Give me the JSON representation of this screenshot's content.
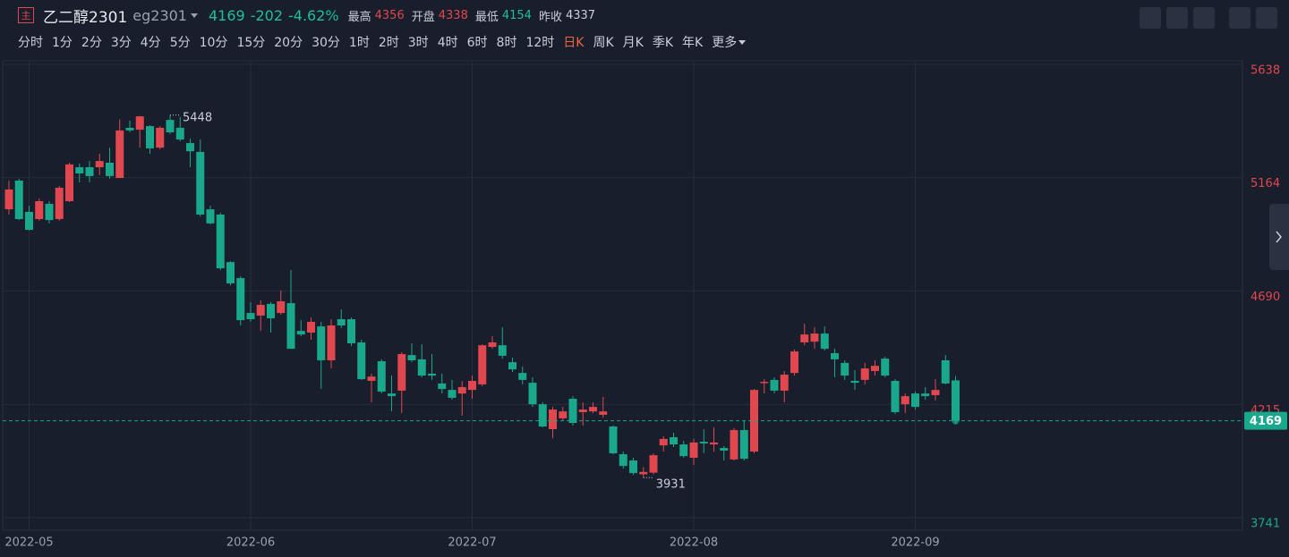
{
  "header": {
    "badge": "主",
    "name": "乙二醇2301",
    "code": "eg2301",
    "price": "4169",
    "change": "-202",
    "change_pct": "-4.62%",
    "stats": [
      {
        "label": "最高",
        "value": "4356"
      },
      {
        "label": "开盘",
        "value": "4338"
      },
      {
        "label": "最低",
        "value": "4154"
      },
      {
        "label": "昨收",
        "value": "4337"
      }
    ]
  },
  "timeframes": [
    "分时",
    "1分",
    "2分",
    "3分",
    "4分",
    "5分",
    "10分",
    "15分",
    "20分",
    "30分",
    "1时",
    "2时",
    "3时",
    "4时",
    "6时",
    "8时",
    "12时",
    "日K",
    "周K",
    "月K",
    "季K",
    "年K",
    "更多"
  ],
  "active_timeframe": "日K",
  "chart_data": {
    "type": "candlestick",
    "up_color": "#e0474f",
    "down_color": "#1aa88c",
    "categories": [
      null,
      null,
      "2022-05",
      null,
      null,
      null,
      null,
      null,
      null,
      null,
      null,
      null,
      null,
      null,
      null,
      null,
      null,
      null,
      null,
      null,
      null,
      null,
      null,
      null,
      "2022-06",
      null,
      null,
      null,
      null,
      null,
      null,
      null,
      null,
      null,
      null,
      null,
      null,
      null,
      null,
      null,
      null,
      null,
      null,
      null,
      null,
      null,
      "2022-07",
      null,
      null,
      null,
      null,
      null,
      null,
      null,
      null,
      null,
      null,
      null,
      null,
      null,
      null,
      null,
      null,
      null,
      null,
      null,
      null,
      null,
      "2022-08",
      null,
      null,
      null,
      null,
      null,
      null,
      null,
      null,
      null,
      null,
      null,
      null,
      null,
      null,
      null,
      null,
      null,
      null,
      null,
      null,
      null,
      "2022-09",
      null,
      null,
      null,
      null
    ],
    "open": [
      5054,
      5174,
      5043,
      5013,
      5077,
      5013,
      5088,
      5230,
      5230,
      5230,
      5249,
      5185,
      5395,
      5387,
      5402,
      5312,
      5428,
      5395,
      5331,
      5294,
      5054,
      5032,
      4833,
      4766,
      4620,
      4609,
      4658,
      4620,
      4661,
      4545,
      4538,
      4564,
      4422,
      4594,
      4594,
      4497,
      4336,
      4418,
      4283,
      4295,
      4444,
      4426,
      4366,
      4325,
      4298,
      4283,
      4298,
      4321,
      4478,
      4485,
      4414,
      4369,
      4328,
      4238,
      4134,
      4179,
      4261,
      4205,
      4208,
      4194,
      4145,
      4029,
      4003,
      3945,
      3952,
      4066,
      4100,
      4070,
      4014,
      4081,
      4070,
      4055,
      4007,
      4130,
      4040,
      4328,
      4340,
      4295,
      4369,
      4497,
      4500,
      4534,
      4452,
      4411,
      4336,
      4340,
      4377,
      4429,
      4336,
      4238,
      4283,
      4283,
      4276,
      4422,
      4338
    ],
    "high": [
      5174,
      5181,
      5069,
      5099,
      5088,
      5152,
      5249,
      5245,
      5256,
      5286,
      5312,
      5430,
      5425,
      5445,
      5406,
      5402,
      5448,
      5440,
      5350,
      5346,
      5069,
      5039,
      4837,
      4774,
      4665,
      4673,
      4665,
      4714,
      4800,
      4590,
      4601,
      4583,
      4594,
      4635,
      4601,
      4508,
      4366,
      4426,
      4358,
      4456,
      4493,
      4489,
      4448,
      4366,
      4340,
      4336,
      4358,
      4489,
      4523,
      4560,
      4433,
      4396,
      4351,
      4246,
      4227,
      4227,
      4272,
      4246,
      4246,
      4268,
      4149,
      4040,
      4014,
      3975,
      4033,
      4104,
      4119,
      4085,
      4093,
      4134,
      4141,
      4063,
      4138,
      4171,
      4302,
      4343,
      4351,
      4377,
      4467,
      4575,
      4560,
      4564,
      4470,
      4422,
      4381,
      4411,
      4422,
      4437,
      4343,
      4283,
      4291,
      4310,
      4343,
      4444,
      4356
    ],
    "low": [
      5032,
      5009,
      4965,
      5006,
      4995,
      5006,
      5084,
      5167,
      5167,
      5197,
      5182,
      5185,
      5376,
      5312,
      5286,
      5305,
      5369,
      5339,
      5230,
      5024,
      4991,
      4800,
      4736,
      4568,
      4583,
      4545,
      4538,
      4613,
      4470,
      4523,
      4508,
      4302,
      4388,
      4557,
      4482,
      4340,
      4246,
      4283,
      4209,
      4201,
      4414,
      4351,
      4340,
      4283,
      4257,
      4190,
      4261,
      4313,
      4470,
      4429,
      4373,
      4321,
      4227,
      4141,
      4096,
      4171,
      4149,
      4149,
      4201,
      4182,
      4029,
      3969,
      3942,
      3931,
      3945,
      4040,
      4059,
      4014,
      3984,
      4033,
      4040,
      4003,
      4003,
      4003,
      4033,
      4283,
      4283,
      4246,
      4358,
      4485,
      4470,
      4463,
      4351,
      4340,
      4298,
      4321,
      4358,
      4351,
      4197,
      4201,
      4216,
      4257,
      4253,
      4321,
      4154
    ],
    "close": [
      5137,
      5013,
      4968,
      5088,
      5009,
      5144,
      5242,
      5204,
      5193,
      5256,
      5193,
      5384,
      5384,
      5443,
      5309,
      5395,
      5376,
      5346,
      5297,
      5032,
      4995,
      4807,
      4744,
      4590,
      4594,
      4654,
      4598,
      4669,
      4470,
      4530,
      4583,
      4422,
      4568,
      4568,
      4493,
      4343,
      4354,
      4291,
      4272,
      4448,
      4422,
      4358,
      4358,
      4302,
      4265,
      4310,
      4336,
      4485,
      4497,
      4441,
      4384,
      4340,
      4238,
      4145,
      4216,
      4208,
      4160,
      4216,
      4227,
      4208,
      4033,
      3980,
      3950,
      3955,
      4025,
      4093,
      4070,
      4021,
      4078,
      4074,
      4078,
      4044,
      4130,
      4010,
      4298,
      4332,
      4295,
      4362,
      4459,
      4530,
      4534,
      4470,
      4426,
      4358,
      4328,
      4388,
      4399,
      4358,
      4205,
      4272,
      4227,
      4272,
      4298,
      4325,
      4169
    ],
    "ylim": [
      3741,
      5638
    ],
    "yticks": [
      3741,
      4215,
      4690,
      5164,
      5638
    ],
    "grid": true,
    "current_price": 4169,
    "high_marker_index": 16,
    "low_marker_index": 63
  }
}
